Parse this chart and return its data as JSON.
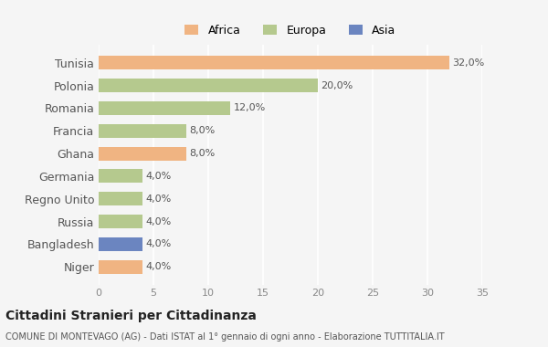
{
  "categories": [
    "Tunisia",
    "Polonia",
    "Romania",
    "Francia",
    "Ghana",
    "Germania",
    "Regno Unito",
    "Russia",
    "Bangladesh",
    "Niger"
  ],
  "values": [
    32.0,
    20.0,
    12.0,
    8.0,
    8.0,
    4.0,
    4.0,
    4.0,
    4.0,
    4.0
  ],
  "colors": [
    "#f0b482",
    "#b5c98e",
    "#b5c98e",
    "#b5c98e",
    "#f0b482",
    "#b5c98e",
    "#b5c98e",
    "#b5c98e",
    "#6b85c0",
    "#f0b482"
  ],
  "labels": [
    "32,0%",
    "20,0%",
    "12,0%",
    "8,0%",
    "8,0%",
    "4,0%",
    "4,0%",
    "4,0%",
    "4,0%",
    "4,0%"
  ],
  "legend": [
    {
      "label": "Africa",
      "color": "#f0b482"
    },
    {
      "label": "Europa",
      "color": "#b5c98e"
    },
    {
      "label": "Asia",
      "color": "#6b85c0"
    }
  ],
  "xlim": [
    0,
    35
  ],
  "xticks": [
    0,
    5,
    10,
    15,
    20,
    25,
    30,
    35
  ],
  "title": "Cittadini Stranieri per Cittadinanza",
  "subtitle": "COMUNE DI MONTEVAGO (AG) - Dati ISTAT al 1° gennaio di ogni anno - Elaborazione TUTTITALIA.IT",
  "bg_color": "#f5f5f5",
  "grid_color": "#ffffff",
  "bar_height": 0.6
}
